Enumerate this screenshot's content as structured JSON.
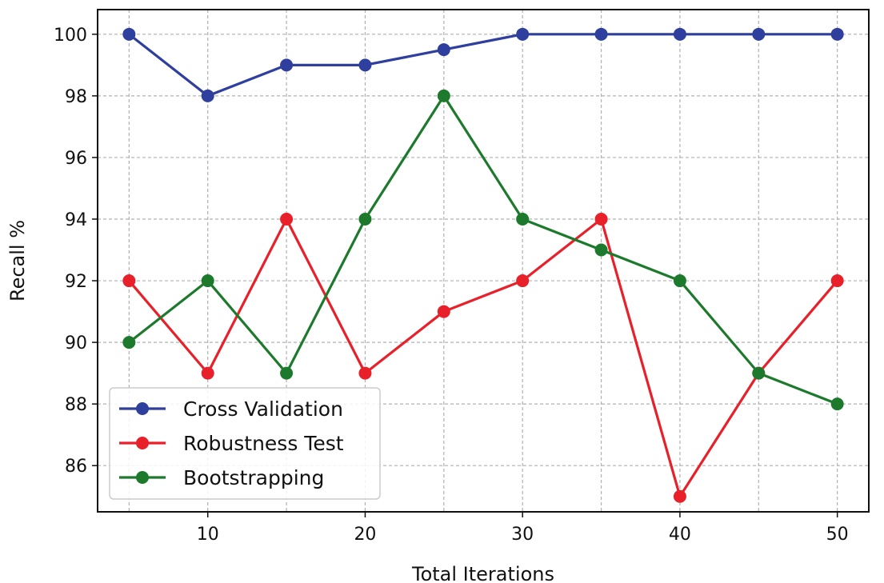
{
  "chart_data": {
    "type": "line",
    "title": "",
    "xlabel": "Total Iterations",
    "ylabel": "Recall %",
    "x": [
      5,
      10,
      15,
      20,
      25,
      30,
      35,
      40,
      45,
      50
    ],
    "xlim": [
      3,
      52
    ],
    "ylim": [
      84.5,
      100.8
    ],
    "xticks": [
      10,
      20,
      30,
      40,
      50
    ],
    "yticks": [
      86,
      88,
      90,
      92,
      94,
      96,
      98,
      100
    ],
    "grid": true,
    "legend_position": "lower-left",
    "series": [
      {
        "name": "Cross Validation",
        "color": "#2f3f9e",
        "values": [
          100,
          98,
          99,
          99,
          99.5,
          100,
          100,
          100,
          100,
          100
        ]
      },
      {
        "name": "Robustness Test",
        "color": "#e8202a",
        "values": [
          92,
          89,
          94,
          89,
          91,
          92,
          94,
          85,
          89,
          92
        ]
      },
      {
        "name": "Bootstrapping",
        "color": "#1d7a2c",
        "values": [
          90,
          92,
          89,
          94,
          98,
          94,
          93,
          92,
          89,
          88
        ]
      }
    ]
  }
}
